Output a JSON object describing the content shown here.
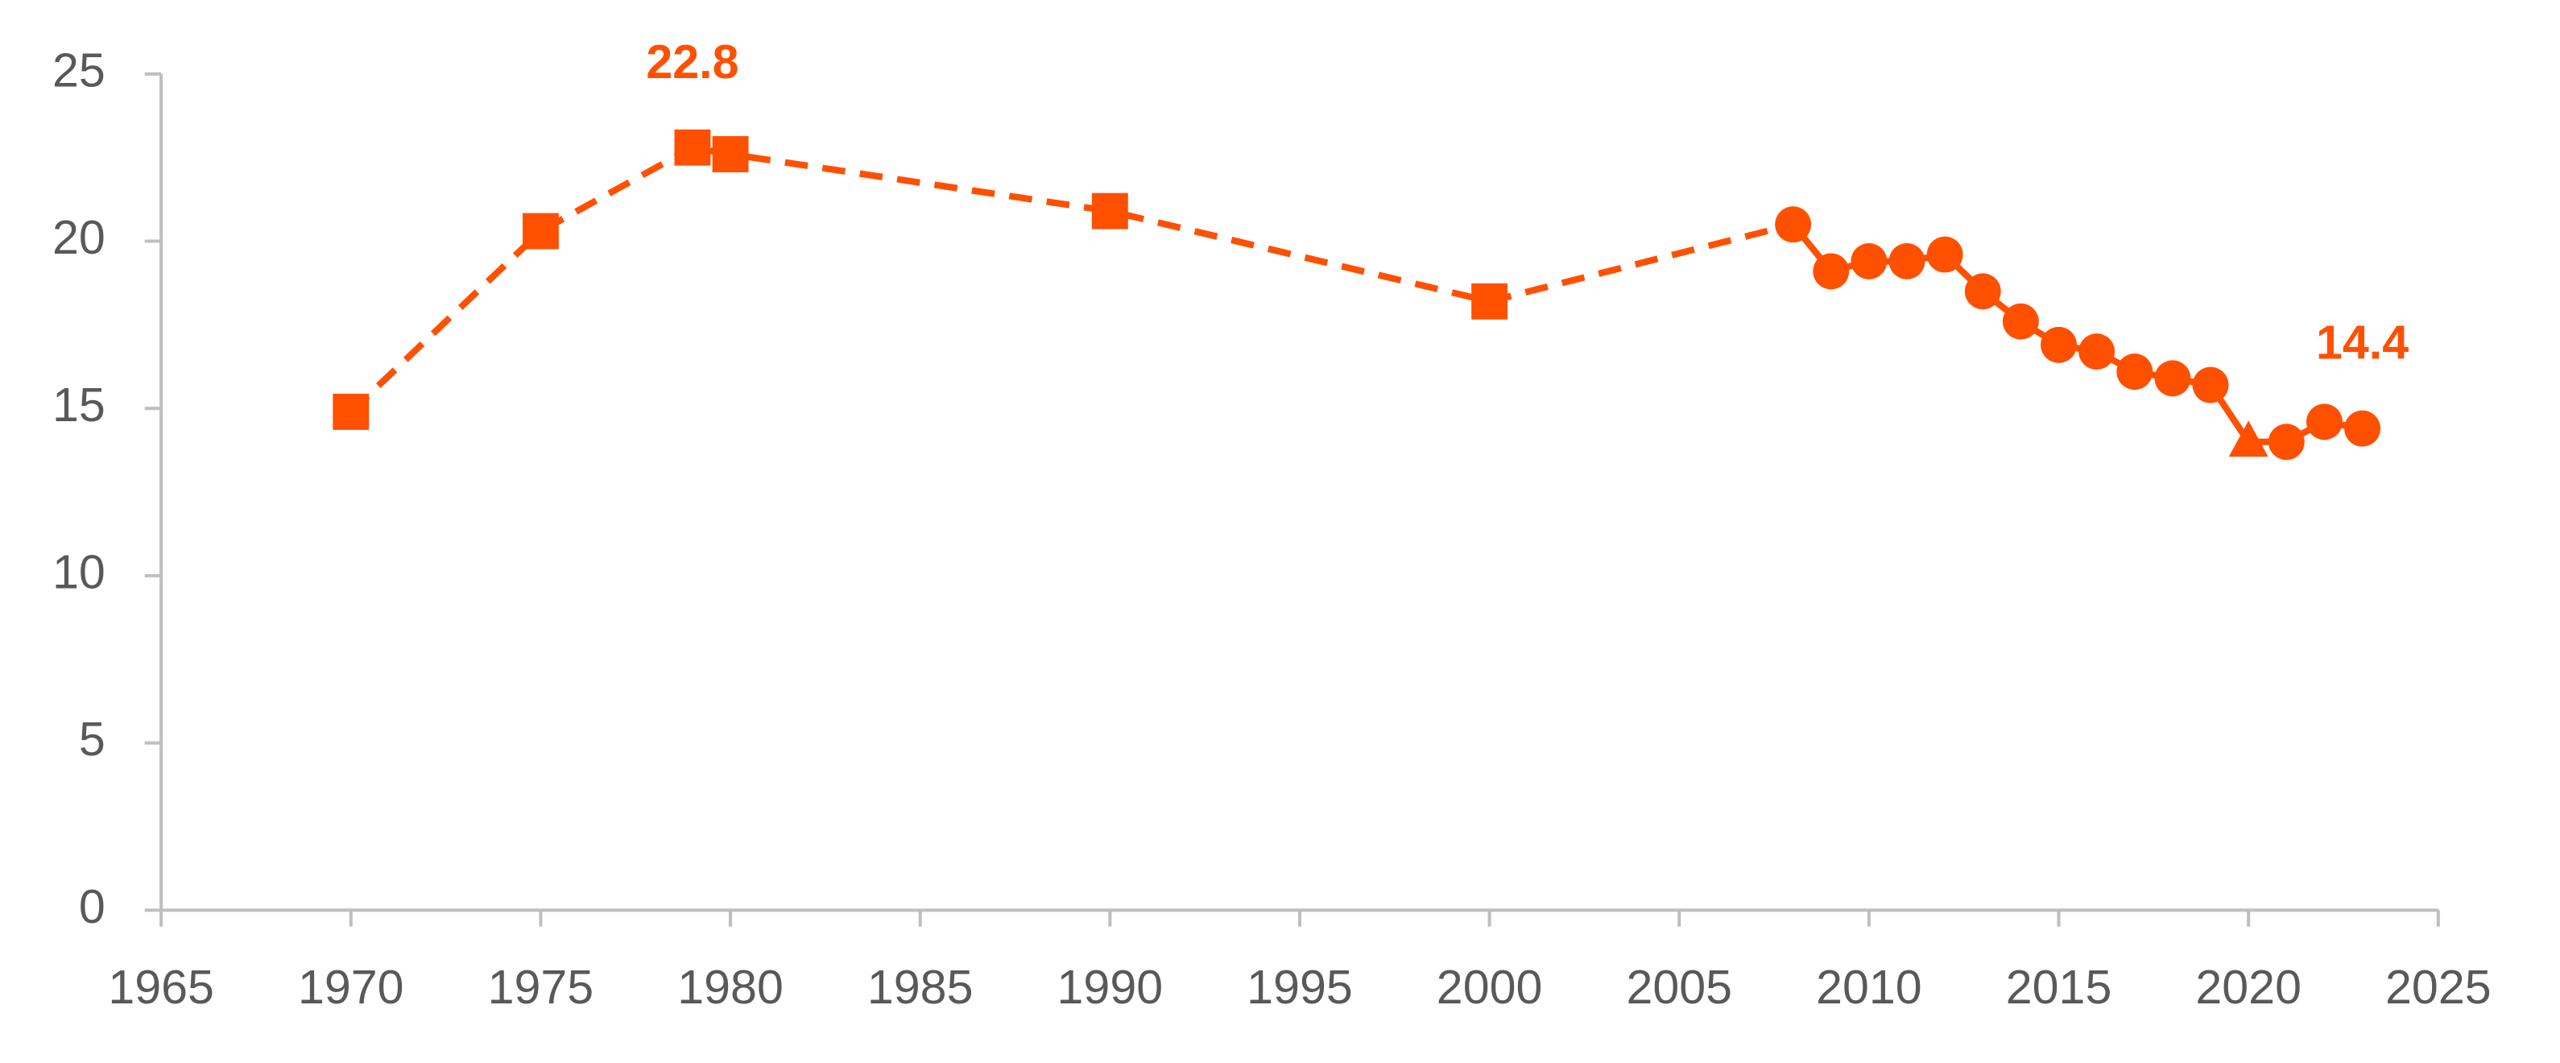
{
  "chart_data": {
    "type": "line",
    "series": [
      {
        "color": "#ff5000",
        "x": [
          1970,
          1975,
          1979,
          1980,
          1990,
          2000,
          2008,
          2009,
          2010,
          2011,
          2012,
          2013,
          2014,
          2015,
          2016,
          2017,
          2018,
          2019,
          2020,
          2021,
          2022,
          2023
        ],
        "values": [
          14.9,
          20.3,
          22.8,
          22.6,
          20.9,
          18.2,
          20.5,
          19.1,
          19.4,
          19.4,
          19.6,
          18.5,
          17.6,
          16.9,
          16.7,
          16.1,
          15.9,
          15.7,
          14.0,
          14.0,
          14.6,
          14.4
        ],
        "value_labels": [
          null,
          null,
          "22.8",
          null,
          null,
          null,
          null,
          null,
          null,
          null,
          null,
          null,
          null,
          null,
          null,
          null,
          null,
          null,
          null,
          null,
          null,
          "14.4"
        ],
        "markers": [
          "square",
          "square",
          "square",
          "square",
          "square",
          "square",
          "circle",
          "circle",
          "circle",
          "circle",
          "circle",
          "circle",
          "circle",
          "circle",
          "circle",
          "circle",
          "circle",
          "circle",
          "triangle",
          "circle",
          "circle",
          "circle"
        ],
        "line_styles": [
          "dashed",
          "dashed",
          "dashed",
          "dashed",
          "dashed",
          "dashed",
          "solid",
          "solid",
          "solid",
          "solid",
          "solid",
          "solid",
          "solid",
          "solid",
          "solid",
          "solid",
          "solid",
          "solid",
          "solid",
          "solid",
          "solid"
        ]
      }
    ],
    "xlim": [
      1965,
      2025
    ],
    "xticks": [
      1965,
      1970,
      1975,
      1980,
      1985,
      1990,
      1995,
      2000,
      2005,
      2010,
      2015,
      2020,
      2025
    ],
    "ylim": [
      0,
      25
    ],
    "yticks": [
      0,
      5,
      10,
      15,
      20,
      25
    ],
    "grid": false
  }
}
